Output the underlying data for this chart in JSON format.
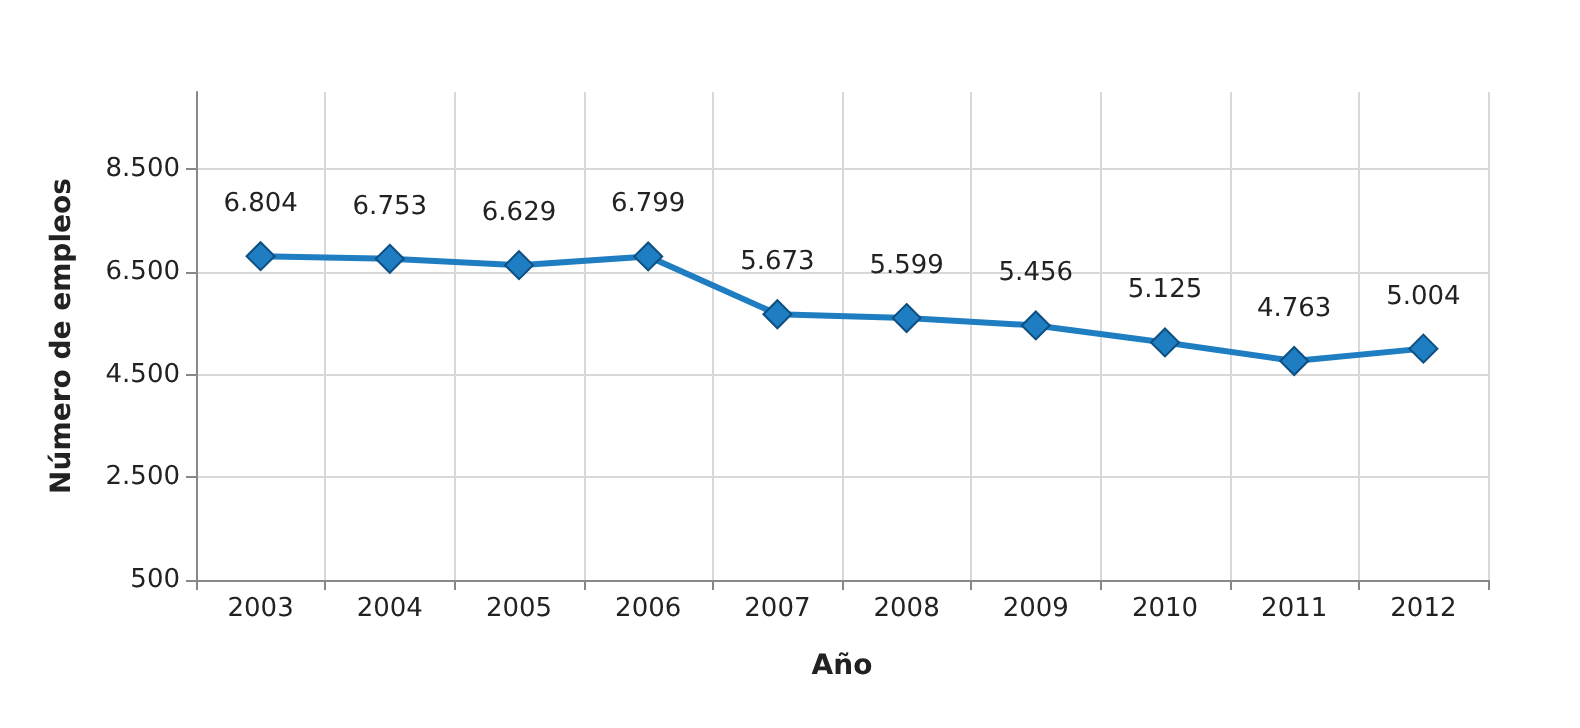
{
  "chart_data": {
    "type": "line",
    "xlabel": "Año",
    "ylabel": "Número de empleos",
    "categories": [
      "2003",
      "2004",
      "2005",
      "2006",
      "2007",
      "2008",
      "2009",
      "2010",
      "2011",
      "2012"
    ],
    "series": [
      {
        "color": "#1f7dc1",
        "values": [
          6804,
          6753,
          6629,
          6799,
          5673,
          5599,
          5456,
          5125,
          4763,
          5004
        ],
        "value_labels": [
          "6.804",
          "6.753",
          "6.629",
          "6.799",
          "5.673",
          "5.599",
          "5.456",
          "5.125",
          "4.763",
          "5.004"
        ]
      }
    ],
    "ylim": [
      500,
      10000
    ],
    "yticks": [
      {
        "value": 500,
        "label": "500"
      },
      {
        "value": 2500,
        "label": "2.500"
      },
      {
        "value": 4500,
        "label": "4.500"
      },
      {
        "value": 6500,
        "label": "6.500"
      },
      {
        "value": 8500,
        "label": "8.500"
      }
    ],
    "grid": true,
    "marker": "diamond",
    "line_style": "solid"
  }
}
